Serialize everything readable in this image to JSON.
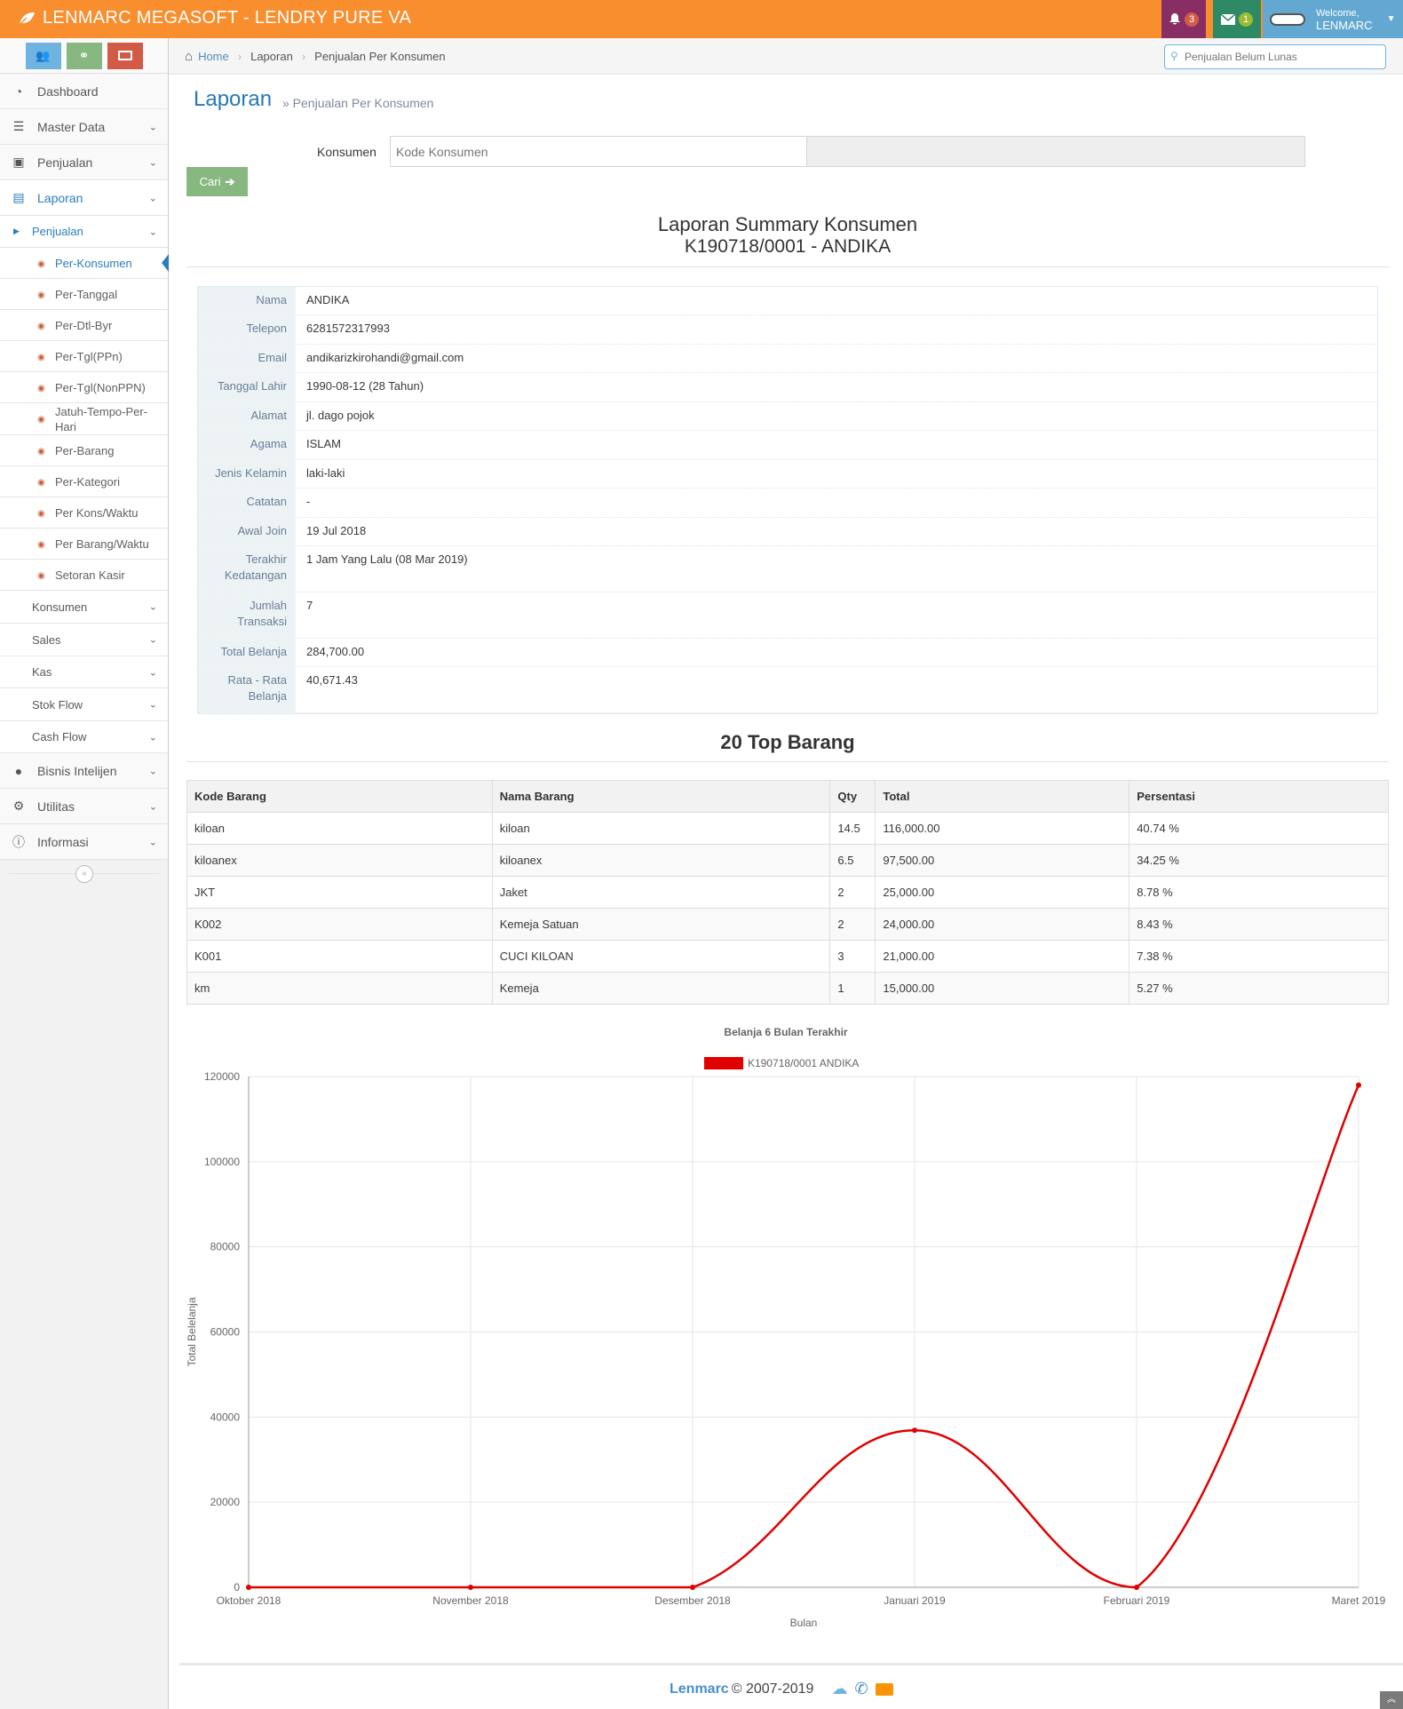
{
  "navbar": {
    "brand": "LENMARC MEGASOFT - LENDRY PURE VA",
    "notif_count": "3",
    "mail_count": "1",
    "welcome": "Welcome,",
    "user": "LENMARC"
  },
  "sidebar": {
    "items": [
      {
        "label": "Dashboard"
      },
      {
        "label": "Master Data"
      },
      {
        "label": "Penjualan"
      },
      {
        "label": "Laporan"
      },
      {
        "label": "Bisnis Intelijen"
      },
      {
        "label": "Utilitas"
      },
      {
        "label": "Informasi"
      }
    ],
    "laporan_sub": [
      "Penjualan",
      "Konsumen",
      "Sales",
      "Kas",
      "Stok Flow",
      "Cash Flow"
    ],
    "penjualan_sub": [
      "Per-Konsumen",
      "Per-Tanggal",
      "Per-Dtl-Byr",
      "Per-Tgl(PPn)",
      "Per-Tgl(NonPPN)",
      "Jatuh-Tempo-Per-Hari",
      "Per-Barang",
      "Per-Kategori",
      "Per Kons/Waktu",
      "Per Barang/Waktu",
      "Setoran Kasir"
    ]
  },
  "breadcrumb": {
    "home": "Home",
    "level1": "Laporan",
    "level2": "Penjualan Per Konsumen"
  },
  "search": {
    "placeholder": "Penjualan Belum Lunas"
  },
  "page": {
    "title": "Laporan",
    "subtitle": "» Penjualan Per Konsumen"
  },
  "form": {
    "label": "Konsumen",
    "placeholder": "Kode Konsumen",
    "button": "Cari"
  },
  "report": {
    "title": "Laporan Summary Konsumen",
    "subtitle": "K190718/0001 - ANDIKA",
    "fields": [
      {
        "k": "Nama",
        "v": "ANDIKA"
      },
      {
        "k": "Telepon",
        "v": "6281572317993"
      },
      {
        "k": "Email",
        "v": "andikarizkirohandi@gmail.com"
      },
      {
        "k": "Tanggal Lahir",
        "v": "1990-08-12 (28 Tahun)"
      },
      {
        "k": "Alamat",
        "v": "jl. dago pojok"
      },
      {
        "k": "Agama",
        "v": "ISLAM"
      },
      {
        "k": "Jenis Kelamin",
        "v": "laki-laki"
      },
      {
        "k": "Catatan",
        "v": "-"
      },
      {
        "k": "Awal Join",
        "v": "19 Jul 2018"
      },
      {
        "k": "Terakhir Kedatangan",
        "v": "1 Jam Yang Lalu (08 Mar 2019)"
      },
      {
        "k": "Jumlah Transaksi",
        "v": "7"
      },
      {
        "k": "Total Belanja",
        "v": "284,700.00"
      },
      {
        "k": "Rata - Rata Belanja",
        "v": "40,671.43"
      }
    ]
  },
  "top": {
    "title": "20 Top Barang",
    "headers": [
      "Kode Barang",
      "Nama Barang",
      "Qty",
      "Total",
      "Persentasi"
    ],
    "rows": [
      [
        "kiloan",
        "kiloan",
        "14.5",
        "116,000.00",
        "40.74 %"
      ],
      [
        "kiloanex",
        "kiloanex",
        "6.5",
        "97,500.00",
        "34.25 %"
      ],
      [
        "JKT",
        "Jaket",
        "2",
        "25,000.00",
        "8.78 %"
      ],
      [
        "K002",
        "Kemeja Satuan",
        "2",
        "24,000.00",
        "8.43 %"
      ],
      [
        "K001",
        "CUCI KILOAN",
        "3",
        "21,000.00",
        "7.38 %"
      ],
      [
        "km",
        "Kemeja",
        "1",
        "15,000.00",
        "5.27 %"
      ]
    ]
  },
  "chart_data": {
    "type": "line",
    "title": "Belanja 6 Bulan Terakhir",
    "xlabel": "Bulan",
    "ylabel": "Total Belelanja",
    "categories": [
      "Oktober 2018",
      "November 2018",
      "Desember 2018",
      "Januari 2019",
      "Februari 2019",
      "Maret 2019"
    ],
    "series": [
      {
        "name": "K190718/0001 ANDIKA",
        "values": [
          0,
          0,
          0,
          36900,
          0,
          118000
        ],
        "color": "#e00000"
      }
    ],
    "ylim": [
      0,
      120000
    ],
    "yticks": [
      0,
      20000,
      40000,
      60000,
      80000,
      100000,
      120000
    ],
    "grid": true,
    "legend": "top"
  },
  "footer": {
    "brand": "Lenmarc",
    "copy": "© 2007-2019"
  },
  "colors": {
    "navbar": "#f98e2f",
    "accent": "#438eb9",
    "btn_success": "#87b87f",
    "line": "#e00000"
  }
}
